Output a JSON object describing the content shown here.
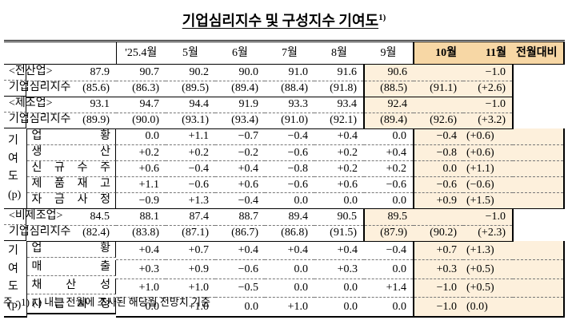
{
  "header": {
    "title": "기업심리지수 및 구성지수 기여도",
    "footnote_mark": "1)"
  },
  "table": {
    "columns": [
      "'25.4월",
      "5월",
      "6월",
      "7월",
      "8월",
      "9월",
      "10월",
      "11월",
      "전월대비"
    ],
    "sections": [
      {
        "head": {
          "label": "< 전 산 업 >",
          "values": [
            "87.9",
            "90.7",
            "90.2",
            "90.0",
            "91.0",
            "91.6",
            "90.6"
          ],
          "change": "−1.0"
        },
        "outlook": {
          "label": "기업심리지수",
          "values": [
            "(85.6)",
            "(86.3)",
            "(89.5)",
            "(89.4)",
            "(88.4)",
            "(91.8)",
            "(88.5)",
            "(91.1)",
            "(+2.6)"
          ]
        }
      },
      {
        "head": {
          "label": "< 제 조 업 >",
          "values": [
            "93.1",
            "94.7",
            "94.4",
            "91.9",
            "93.3",
            "93.4",
            "92.4"
          ],
          "change": "−1.0"
        },
        "outlook": {
          "label": "기업심리지수",
          "values": [
            "(89.9)",
            "(90.0)",
            "(93.1)",
            "(93.4)",
            "(91.0)",
            "(92.1)",
            "(89.4)",
            "(92.6)",
            "(+3.2)"
          ]
        },
        "contrib": {
          "group_label": "기여도(p)",
          "rows": [
            {
              "label": "업황",
              "values": [
                "0.0",
                "+1.1",
                "−0.7",
                "−0.4",
                "+0.4",
                "0.0",
                "−0.4",
                "(+0.6)"
              ]
            },
            {
              "label": "생산",
              "values": [
                "+0.2",
                "+0.2",
                "−0.2",
                "−0.6",
                "+0.2",
                "+0.4",
                "−0.8",
                "(+0.6)"
              ]
            },
            {
              "label": "신규수주",
              "values": [
                "+0.6",
                "−0.4",
                "+0.4",
                "−0.8",
                "+0.2",
                "+0.2",
                "0.0",
                "(+1.1)"
              ]
            },
            {
              "label": "제품재고",
              "values": [
                "+1.1",
                "−0.6",
                "+0.6",
                "−0.6",
                "+0.6",
                "−0.6",
                "−0.6",
                "(−0.6)"
              ]
            },
            {
              "label": "자금사정",
              "values": [
                "−0.9",
                "+1.3",
                "−0.4",
                "0.0",
                "0.0",
                "0.0",
                "+0.9",
                "(+1.5)"
              ]
            }
          ]
        }
      },
      {
        "head": {
          "label": "< 비 제 조 업 >",
          "values": [
            "84.5",
            "88.1",
            "87.4",
            "88.7",
            "89.4",
            "90.5",
            "89.5"
          ],
          "change": "−1.0"
        },
        "outlook": {
          "label": "기업심리지수",
          "values": [
            "(82.4)",
            "(83.8)",
            "(87.1)",
            "(86.7)",
            "(86.8)",
            "(91.5)",
            "(87.9)",
            "(90.2)",
            "(+2.3)"
          ]
        },
        "contrib": {
          "group_label": "기여도(p)",
          "rows": [
            {
              "label": "업황",
              "values": [
                "+0.4",
                "+0.7",
                "+0.4",
                "+0.4",
                "+0.4",
                "−0.4",
                "+0.7",
                "(+1.3)"
              ]
            },
            {
              "label": "매출",
              "values": [
                "+0.3",
                "+0.9",
                "−0.6",
                "0.0",
                "+0.3",
                "0.0",
                "+0.3",
                "(+0.5)"
              ]
            },
            {
              "label": "채산성",
              "values": [
                "+1.0",
                "+1.0",
                "−0.5",
                "0.0",
                "0.0",
                "+1.4",
                "−1.0",
                "(+0.5)"
              ]
            },
            {
              "label": "자금사정",
              "values": [
                "0.0",
                "+1.0",
                "0.0",
                "+1.0",
                "0.0",
                "0.0",
                "−1.0",
                "(0.0)"
              ]
            }
          ]
        }
      }
    ]
  },
  "footnote": "주 : 1) (   ) 내는 전월에 조사된 해당월 전망치 기준"
}
